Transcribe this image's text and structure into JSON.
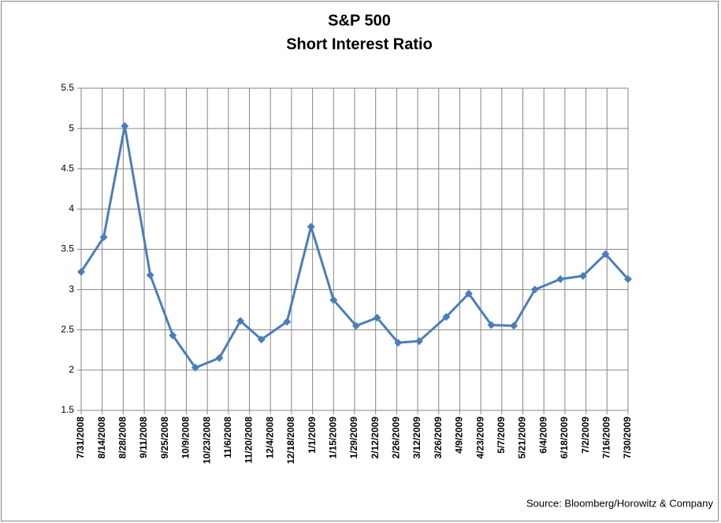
{
  "chart_data": {
    "type": "line",
    "title": "S&P 500",
    "subtitle": "Short Interest Ratio",
    "source": "Source: Bloomberg/Horowitz & Company",
    "x": [
      "2008-07-31",
      "2008-08-15",
      "2008-08-29",
      "2008-09-15",
      "2008-09-30",
      "2008-10-15",
      "2008-10-31",
      "2008-11-14",
      "2008-11-28",
      "2008-12-15",
      "2008-12-31",
      "2009-01-15",
      "2009-01-30",
      "2009-02-13",
      "2009-02-27",
      "2009-03-13",
      "2009-03-31",
      "2009-04-15",
      "2009-04-30",
      "2009-05-15",
      "2009-05-29",
      "2009-06-15",
      "2009-06-30",
      "2009-07-15",
      "2009-07-30"
    ],
    "series": [
      {
        "name": "Short Interest Ratio",
        "color": "#4a7ebb",
        "values": [
          3.22,
          3.65,
          5.03,
          3.18,
          2.43,
          2.03,
          2.15,
          2.61,
          2.38,
          2.6,
          3.78,
          2.87,
          2.55,
          2.65,
          2.34,
          2.36,
          2.66,
          2.95,
          2.56,
          2.55,
          3.0,
          3.13,
          3.17,
          3.44,
          3.13
        ]
      }
    ],
    "xlim": [
      "2008-07-31",
      "2009-07-30"
    ],
    "xticks": [
      {
        "value": "2008-07-31",
        "label": "7/31/2008"
      },
      {
        "value": "2008-08-14",
        "label": "8/14/2008"
      },
      {
        "value": "2008-08-28",
        "label": "8/28/2008"
      },
      {
        "value": "2008-09-11",
        "label": "9/11/2008"
      },
      {
        "value": "2008-09-25",
        "label": "9/25/2008"
      },
      {
        "value": "2008-10-09",
        "label": "10/9/2008"
      },
      {
        "value": "2008-10-23",
        "label": "10/23/2008"
      },
      {
        "value": "2008-11-06",
        "label": "11/6/2008"
      },
      {
        "value": "2008-11-20",
        "label": "11/20/2008"
      },
      {
        "value": "2008-12-04",
        "label": "12/4/2008"
      },
      {
        "value": "2008-12-18",
        "label": "12/18/2008"
      },
      {
        "value": "2009-01-01",
        "label": "1/1/2009"
      },
      {
        "value": "2009-01-15",
        "label": "1/15/2009"
      },
      {
        "value": "2009-01-29",
        "label": "1/29/2009"
      },
      {
        "value": "2009-02-12",
        "label": "2/12/2009"
      },
      {
        "value": "2009-02-26",
        "label": "2/26/2009"
      },
      {
        "value": "2009-03-12",
        "label": "3/12/2009"
      },
      {
        "value": "2009-03-26",
        "label": "3/26/2009"
      },
      {
        "value": "2009-04-09",
        "label": "4/9/2009"
      },
      {
        "value": "2009-04-23",
        "label": "4/23/2009"
      },
      {
        "value": "2009-05-07",
        "label": "5/7/2009"
      },
      {
        "value": "2009-05-21",
        "label": "5/21/2009"
      },
      {
        "value": "2009-06-04",
        "label": "6/4/2009"
      },
      {
        "value": "2009-06-18",
        "label": "6/18/2009"
      },
      {
        "value": "2009-07-02",
        "label": "7/2/2009"
      },
      {
        "value": "2009-07-16",
        "label": "7/16/2009"
      },
      {
        "value": "2009-07-30",
        "label": "7/30/2009"
      }
    ],
    "ylim": [
      1.5,
      5.5
    ],
    "yticks": [
      1.5,
      2,
      2.5,
      3,
      3.5,
      4,
      4.5,
      5,
      5.5
    ],
    "grid": true,
    "legend": false
  }
}
